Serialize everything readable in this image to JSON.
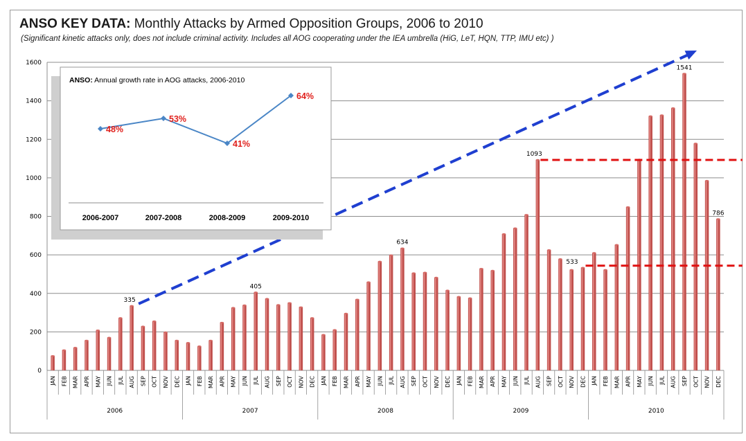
{
  "header": {
    "title_bold": "ANSO KEY DATA:",
    "title_rest": " Monthly Attacks by Armed Opposition Groups, 2006 to 2010",
    "subtitle": "(Significant kinetic attacks only, does not include criminal activity. Includes all AOG  cooperating under the IEA umbrella (HiG, LeT, HQN, TTP, IMU etc) )"
  },
  "chart_data": [
    {
      "type": "bar",
      "title": "ANSO KEY DATA: Monthly Attacks by Armed Opposition Groups, 2006 to 2010",
      "months": [
        "JAN",
        "FEB",
        "MAR",
        "APR",
        "MAY",
        "JUN",
        "JUL",
        "AUG",
        "SEP",
        "OCT",
        "NOV",
        "DEC"
      ],
      "years": [
        "2006",
        "2007",
        "2008",
        "2009",
        "2010"
      ],
      "values": [
        75,
        105,
        118,
        155,
        208,
        170,
        272,
        335,
        228,
        255,
        198,
        155,
        143,
        125,
        155,
        248,
        325,
        338,
        405,
        372,
        340,
        350,
        328,
        272,
        185,
        210,
        295,
        368,
        458,
        565,
        598,
        634,
        505,
        508,
        482,
        415,
        382,
        375,
        528,
        518,
        708,
        738,
        808,
        1093,
        625,
        578,
        522,
        533,
        610,
        522,
        652,
        848,
        1095,
        1320,
        1325,
        1362,
        1541,
        1178,
        985,
        786
      ],
      "data_labels": [
        {
          "index": 7,
          "text": "335"
        },
        {
          "index": 18,
          "text": "405"
        },
        {
          "index": 31,
          "text": "634"
        },
        {
          "index": 43,
          "text": "1093"
        },
        {
          "index": 47,
          "text": "533"
        },
        {
          "index": 56,
          "text": "1541"
        },
        {
          "index": 59,
          "text": "786"
        }
      ],
      "ylim": [
        0,
        1600
      ],
      "yticks": [
        "0",
        "200",
        "400",
        "600",
        "800",
        "1000",
        "1200",
        "1400",
        "1600"
      ],
      "grid": true,
      "bar_color": "#c0504d",
      "trend_arrow_color": "#1f3fd0",
      "reference_line_color": "#e01010",
      "reference_levels": [
        1093,
        533
      ]
    },
    {
      "type": "line",
      "title": "ANSO: Annual growth rate in AOG attacks, 2006-2010",
      "title_bold": "ANSO:",
      "title_rest": " Annual growth rate in AOG attacks, 2006-2010",
      "categories": [
        "2006-2007",
        "2007-2008",
        "2008-2009",
        "2009-2010"
      ],
      "values": [
        48,
        53,
        41,
        64
      ],
      "labels": [
        "48%",
        "53%",
        "41%",
        "64%"
      ],
      "line_color": "#4a86c6",
      "label_color": "#e0201c"
    }
  ]
}
